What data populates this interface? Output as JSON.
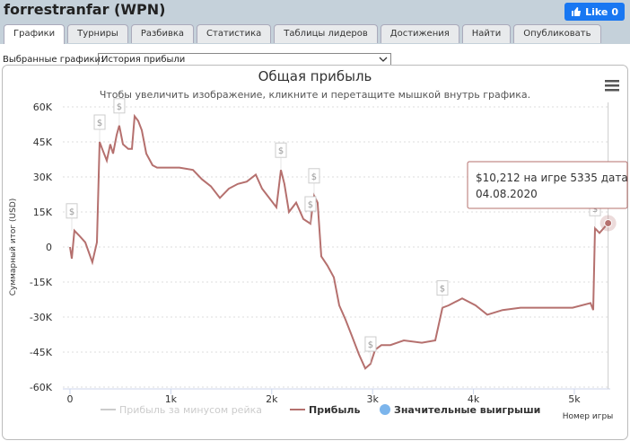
{
  "header": {
    "title": "forrestranfar (WPN)",
    "like": "Like",
    "like_count": 0
  },
  "tabs": [
    "Графики",
    "Турниры",
    "Разбивка",
    "Статистика",
    "Таблицы лидеров",
    "Достижения",
    "Найти",
    "Опубликовать"
  ],
  "selector": {
    "label": "Выбранные графики:",
    "value": "История прибыли"
  },
  "chart_data": {
    "type": "line",
    "title": "Общая прибыль",
    "subtitle": "Чтобы увеличить изображение, кликните и перетащите мышкой внутрь графика.",
    "y_label": "Суммарный итог (USD)",
    "x_label": "Номер игры",
    "xlim": [
      -71,
      5356
    ],
    "ylim": [
      -60000,
      60000
    ],
    "xticks": [
      0,
      {
        "value": 1000,
        "label": "1k"
      },
      {
        "value": 2000,
        "label": "2k"
      },
      {
        "value": 3000,
        "label": "3k"
      },
      {
        "value": 4000,
        "label": "4k"
      },
      {
        "value": 5000,
        "label": "5k"
      }
    ],
    "yticks": [
      {
        "value": 60000,
        "label": "60K"
      },
      {
        "value": 45000,
        "label": "45K"
      },
      {
        "value": 30000,
        "label": "30K"
      },
      {
        "value": 15000,
        "label": "15K"
      },
      0,
      {
        "value": -15000,
        "label": "-15K"
      },
      {
        "value": -30000,
        "label": "-30K"
      },
      {
        "value": -45000,
        "label": "-45K"
      },
      {
        "value": -60000,
        "label": "-60K"
      }
    ],
    "grid": true,
    "series": [
      {
        "name": "Прибыль за минусом рейка",
        "color": "#cccccc",
        "visible": false
      },
      {
        "name": "Прибыль",
        "color": "#b5706e",
        "x": [
          0,
          18,
          44,
          89,
          151,
          222,
          267,
          294,
          320,
          365,
          400,
          427,
          463,
          489,
          525,
          578,
          614,
          641,
          676,
          712,
          756,
          819,
          863,
          1085,
          1219,
          1308,
          1397,
          1486,
          1575,
          1664,
          1753,
          1842,
          1904,
          1975,
          2046,
          2091,
          2126,
          2171,
          2242,
          2313,
          2384,
          2420,
          2455,
          2491,
          2553,
          2616,
          2669,
          2731,
          2794,
          2865,
          2927,
          2980,
          3025,
          3087,
          3176,
          3310,
          3488,
          3621,
          3692,
          3754,
          3888,
          4021,
          4137,
          4288,
          4466,
          4626,
          4804,
          4982,
          5160,
          5187,
          5205,
          5249,
          5335
        ],
        "values": [
          0,
          -5000,
          7000,
          5000,
          2000,
          -6500,
          2000,
          45000,
          42000,
          37000,
          44000,
          40000,
          48000,
          52000,
          44000,
          42000,
          42000,
          56000,
          54000,
          50000,
          40000,
          35000,
          34000,
          34000,
          33000,
          29000,
          26000,
          21000,
          25000,
          27000,
          28000,
          31000,
          25000,
          21000,
          17000,
          33000,
          27000,
          15000,
          19000,
          12000,
          10000,
          22000,
          19000,
          -4000,
          -8000,
          -13000,
          -25000,
          -31000,
          -38000,
          -46000,
          -52000,
          -50000,
          -44000,
          -42000,
          -42000,
          -40000,
          -41000,
          -40000,
          -26000,
          -25000,
          -22000,
          -25000,
          -29000,
          -27000,
          -26000,
          -26000,
          -26000,
          -26000,
          -24000,
          -27000,
          8000,
          6000,
          10212
        ]
      },
      {
        "name": "Значительные выигрыши",
        "color": "#7cb5ec",
        "flag_label": "$",
        "x": [
          18,
          294,
          489,
          2091,
          2384,
          2420,
          2980,
          3692,
          5205
        ],
        "values": [
          7000,
          45000,
          52000,
          33000,
          10000,
          22000,
          -50000,
          -26000,
          8000
        ]
      }
    ],
    "tooltip": [
      "$10,212 на игре 5335 дата",
      "04.08.2020"
    ]
  }
}
